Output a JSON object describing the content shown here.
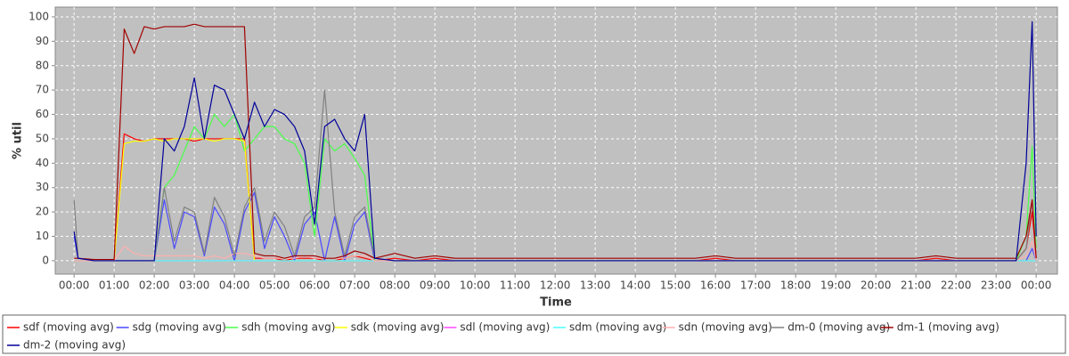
{
  "chart_data": {
    "type": "line",
    "xlabel": "Time",
    "ylabel": "% util",
    "grid": true,
    "legend": "bottom",
    "xlim": [
      -0.47,
      24.53
    ],
    "ylim": [
      -5.5,
      104
    ],
    "yticks": [
      0,
      10,
      20,
      30,
      40,
      50,
      60,
      70,
      80,
      90,
      100
    ],
    "xticks": [
      {
        "value": 0,
        "label": "00:00"
      },
      {
        "value": 1,
        "label": "01:00"
      },
      {
        "value": 2,
        "label": "02:00"
      },
      {
        "value": 3,
        "label": "03:00"
      },
      {
        "value": 4,
        "label": "04:00"
      },
      {
        "value": 5,
        "label": "05:00"
      },
      {
        "value": 6,
        "label": "06:00"
      },
      {
        "value": 7,
        "label": "07:00"
      },
      {
        "value": 8,
        "label": "08:00"
      },
      {
        "value": 9,
        "label": "09:00"
      },
      {
        "value": 10,
        "label": "10:00"
      },
      {
        "value": 11,
        "label": "11:00"
      },
      {
        "value": 12,
        "label": "12:00"
      },
      {
        "value": 13,
        "label": "13:00"
      },
      {
        "value": 14,
        "label": "14:00"
      },
      {
        "value": 15,
        "label": "15:00"
      },
      {
        "value": 16,
        "label": "16:00"
      },
      {
        "value": 17,
        "label": "17:00"
      },
      {
        "value": 18,
        "label": "18:00"
      },
      {
        "value": 19,
        "label": "19:00"
      },
      {
        "value": 20,
        "label": "20:00"
      },
      {
        "value": 21,
        "label": "21:00"
      },
      {
        "value": 22,
        "label": "22:00"
      },
      {
        "value": 23,
        "label": "23:00"
      },
      {
        "value": 24,
        "label": "00:00"
      }
    ],
    "x": [
      0,
      0.1,
      0.5,
      1,
      1.25,
      1.5,
      1.75,
      2,
      2.25,
      2.5,
      2.75,
      3,
      3.25,
      3.5,
      3.75,
      4,
      4.25,
      4.5,
      4.75,
      5,
      5.25,
      5.5,
      5.75,
      6,
      6.25,
      6.5,
      6.75,
      7,
      7.25,
      7.5,
      8,
      8.5,
      9,
      9.5,
      10,
      10.5,
      11,
      11.5,
      12,
      12.5,
      13,
      13.5,
      14,
      14.5,
      15,
      15.5,
      16,
      16.5,
      17,
      17.5,
      18,
      18.5,
      19,
      19.5,
      20,
      20.5,
      21,
      21.5,
      22,
      22.5,
      23,
      23.5,
      23.75,
      23.9,
      24
    ],
    "series": [
      {
        "name": "sdf (moving avg)",
        "color": "#ff0000",
        "values": [
          0,
          0,
          0,
          0,
          52,
          50,
          49,
          50,
          50,
          50,
          50,
          49,
          50,
          50,
          50,
          50,
          50,
          1,
          1,
          1,
          0,
          1,
          1,
          1,
          0,
          0,
          1,
          2,
          1,
          0,
          1,
          0,
          1,
          0,
          0,
          0,
          0,
          0,
          0,
          0,
          0,
          0,
          0,
          0,
          0,
          0,
          1,
          0,
          0,
          0,
          0,
          0,
          0,
          0,
          0,
          0,
          0,
          1,
          0,
          0,
          0,
          0,
          5,
          20,
          1
        ]
      },
      {
        "name": "sdg (moving avg)",
        "color": "#4848ff",
        "values": [
          10,
          1,
          0,
          0,
          0,
          0,
          0,
          0,
          25,
          5,
          20,
          18,
          2,
          22,
          15,
          0,
          20,
          28,
          5,
          18,
          10,
          0,
          15,
          20,
          0,
          18,
          0,
          15,
          20,
          0,
          0,
          0,
          0,
          0,
          0,
          0,
          0,
          0,
          0,
          0,
          0,
          0,
          0,
          0,
          0,
          0,
          0,
          0,
          0,
          0,
          0,
          0,
          0,
          0,
          0,
          0,
          0,
          0,
          0,
          0,
          0,
          0,
          0,
          5,
          0
        ]
      },
      {
        "name": "sdh (moving avg)",
        "color": "#48ff48",
        "values": [
          0,
          0,
          0,
          0,
          0,
          0,
          0,
          0,
          30,
          35,
          45,
          55,
          50,
          60,
          55,
          60,
          45,
          50,
          55,
          55,
          50,
          48,
          40,
          10,
          50,
          45,
          48,
          42,
          35,
          0,
          0,
          0,
          0,
          0,
          0,
          0,
          0,
          0,
          0,
          0,
          0,
          0,
          0,
          0,
          0,
          0,
          0,
          0,
          0,
          0,
          0,
          0,
          0,
          0,
          0,
          0,
          0,
          0,
          0,
          0,
          0,
          0,
          10,
          47,
          5
        ]
      },
      {
        "name": "sdk (moving avg)",
        "color": "#ffff00",
        "values": [
          0,
          0,
          0,
          0,
          48,
          49,
          49,
          50,
          49,
          50,
          50,
          50,
          50,
          49,
          50,
          50,
          49,
          0,
          0,
          0,
          0,
          0,
          0,
          0,
          0,
          0,
          0,
          0,
          0,
          0,
          0,
          0,
          0,
          0,
          0,
          0,
          0,
          0,
          0,
          0,
          0,
          0,
          0,
          0,
          0,
          0,
          0,
          0,
          0,
          0,
          0,
          0,
          0,
          0,
          0,
          0,
          0,
          0,
          0,
          0,
          0,
          0,
          0,
          0,
          0
        ]
      },
      {
        "name": "sdl (moving avg)",
        "color": "#ff48ff",
        "values": [
          0,
          0,
          0,
          0,
          0,
          0,
          0,
          0,
          0,
          0,
          0,
          0,
          0,
          0,
          0,
          0,
          0,
          0,
          0,
          0,
          0,
          0,
          0,
          0,
          0,
          0,
          0,
          0,
          0,
          0,
          0,
          0,
          0,
          0,
          0,
          0,
          0,
          0,
          0,
          0,
          0,
          0,
          0,
          0,
          0,
          0,
          0,
          0,
          0,
          0,
          0,
          0,
          0,
          0,
          0,
          0,
          0,
          0,
          0,
          0,
          0,
          0,
          0,
          0,
          0
        ]
      },
      {
        "name": "sdm (moving avg)",
        "color": "#48ffff",
        "values": [
          0,
          0,
          0,
          0,
          0,
          0,
          0,
          0,
          0,
          0,
          0,
          0,
          0,
          0,
          0,
          0,
          0,
          0,
          0,
          0,
          0,
          0,
          0,
          0,
          0,
          0,
          0,
          0,
          0,
          0,
          0,
          0,
          0,
          0,
          0,
          0,
          0,
          0,
          0,
          0,
          0,
          0,
          0,
          0,
          0,
          0,
          0,
          0,
          0,
          0,
          0,
          0,
          0,
          0,
          0,
          0,
          0,
          0,
          0,
          0,
          0,
          0,
          0,
          0,
          0
        ]
      },
      {
        "name": "sdn (moving avg)",
        "color": "#ffafaf",
        "values": [
          0,
          0,
          0,
          0,
          6,
          3,
          2,
          2,
          2,
          2,
          2,
          2,
          1,
          2,
          1,
          3,
          3,
          2,
          1,
          1,
          1,
          1,
          2,
          1,
          1,
          1,
          1,
          2,
          2,
          0,
          0,
          0,
          0,
          0,
          0,
          0,
          0,
          0,
          0,
          0,
          0,
          0,
          0,
          0,
          0,
          0,
          0,
          0,
          0,
          0,
          0,
          0,
          0,
          0,
          0,
          0,
          0,
          0,
          0,
          0,
          0,
          0,
          2,
          8,
          0
        ]
      },
      {
        "name": "dm-0 (moving avg)",
        "color": "#808080",
        "values": [
          25,
          1,
          0,
          0,
          0,
          0,
          0,
          0,
          30,
          8,
          22,
          20,
          3,
          26,
          18,
          2,
          22,
          30,
          8,
          20,
          14,
          2,
          18,
          22,
          70,
          20,
          2,
          18,
          22,
          1,
          0,
          0,
          0,
          0,
          0,
          0,
          0,
          0,
          0,
          0,
          0,
          0,
          0,
          0,
          0,
          0,
          0,
          0,
          0,
          0,
          0,
          0,
          0,
          0,
          0,
          0,
          0,
          0,
          0,
          0,
          0,
          0,
          5,
          25,
          2
        ]
      },
      {
        "name": "dm-1 (moving avg)",
        "color": "#a00000",
        "values": [
          1,
          1,
          0.5,
          0.5,
          95,
          85,
          96,
          95,
          96,
          96,
          96,
          97,
          96,
          96,
          96,
          96,
          96,
          3,
          2,
          2,
          1,
          2,
          2,
          2,
          1,
          1,
          2,
          4,
          3,
          1,
          3,
          1,
          2,
          1,
          1,
          1,
          1,
          1,
          1,
          1,
          1,
          1,
          1,
          1,
          1,
          1,
          2,
          1,
          1,
          1,
          1,
          1,
          1,
          1,
          1,
          1,
          1,
          2,
          1,
          1,
          1,
          1,
          10,
          25,
          1
        ]
      },
      {
        "name": "dm-2 (moving avg)",
        "color": "#000099",
        "values": [
          12,
          1,
          0,
          0,
          0,
          0,
          0,
          0,
          50,
          45,
          55,
          75,
          50,
          72,
          70,
          60,
          50,
          65,
          55,
          62,
          60,
          55,
          45,
          15,
          55,
          58,
          50,
          45,
          60,
          1,
          0,
          0,
          0,
          0,
          0,
          0,
          0,
          0,
          0,
          0,
          0,
          0,
          0,
          0,
          0,
          0,
          0,
          0,
          0,
          0,
          0,
          0,
          0,
          0,
          0,
          0,
          0,
          0,
          0,
          0,
          0,
          0,
          40,
          98,
          10
        ]
      }
    ]
  }
}
